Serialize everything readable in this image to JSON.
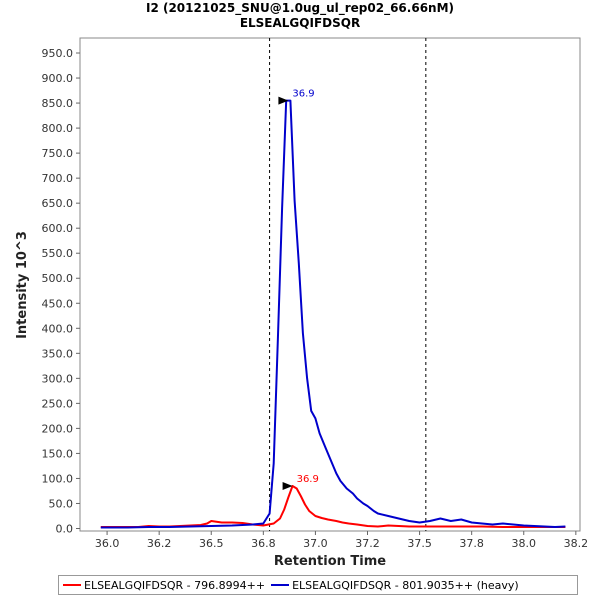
{
  "chart_data": {
    "type": "line",
    "title": "I2 (20121025_SNU@1.0ug_ul_rep02_66.66nM)",
    "subtitle": "ELSEALGQIFDSQR",
    "xlabel": "Retention Time",
    "ylabel": "Intensity 10^3",
    "xlim": [
      35.87,
      38.27
    ],
    "ylim": [
      -5,
      980
    ],
    "x_ticks": [
      "36.0",
      "36.2",
      "36.5",
      "36.8",
      "37.0",
      "37.2",
      "37.5",
      "37.8",
      "38.0",
      "38.2"
    ],
    "x_tick_values": [
      36.0,
      36.25,
      36.5,
      36.75,
      37.0,
      37.25,
      37.5,
      37.75,
      38.0,
      38.25
    ],
    "y_ticks": [
      "0.0",
      "50.0",
      "100.0",
      "150.0",
      "200.0",
      "250.0",
      "300.0",
      "350.0",
      "400.0",
      "450.0",
      "500.0",
      "550.0",
      "600.0",
      "650.0",
      "700.0",
      "750.0",
      "800.0",
      "850.0",
      "900.0",
      "950.0"
    ],
    "y_tick_values": [
      0,
      50,
      100,
      150,
      200,
      250,
      300,
      350,
      400,
      450,
      500,
      550,
      600,
      650,
      700,
      750,
      800,
      850,
      900,
      950
    ],
    "vlines": [
      36.78,
      37.53
    ],
    "legend_position": "bottom",
    "grid": false,
    "series": [
      {
        "name": "ELSEALGQIFDSQR - 796.8994++",
        "color": "#ff0000",
        "peak_label": "36.9",
        "peak": [
          36.9,
          85
        ],
        "x": [
          35.97,
          36.05,
          36.15,
          36.2,
          36.25,
          36.3,
          36.35,
          36.4,
          36.45,
          36.48,
          36.5,
          36.55,
          36.6,
          36.65,
          36.7,
          36.75,
          36.8,
          36.83,
          36.85,
          36.87,
          36.89,
          36.91,
          36.93,
          36.95,
          36.97,
          37.0,
          37.03,
          37.06,
          37.1,
          37.13,
          37.16,
          37.2,
          37.25,
          37.3,
          37.35,
          37.4,
          37.45,
          37.5,
          37.6,
          37.7,
          37.8,
          37.9,
          38.0,
          38.1,
          38.2
        ],
        "y": [
          3,
          3,
          3,
          5,
          4,
          4,
          5,
          6,
          7,
          10,
          15,
          12,
          12,
          11,
          8,
          6,
          10,
          20,
          38,
          62,
          85,
          80,
          65,
          48,
          35,
          25,
          21,
          18,
          15,
          12,
          10,
          8,
          5,
          4,
          6,
          5,
          4,
          4,
          4,
          4,
          4,
          3,
          3,
          3,
          3
        ]
      },
      {
        "name": "ELSEALGQIFDSQR - 801.9035++ (heavy)",
        "color": "#0000cc",
        "peak_label": "36.9",
        "peak": [
          36.88,
          855
        ],
        "x": [
          35.97,
          36.1,
          36.2,
          36.3,
          36.4,
          36.5,
          36.6,
          36.7,
          36.75,
          36.78,
          36.8,
          36.82,
          36.84,
          36.86,
          36.88,
          36.9,
          36.92,
          36.94,
          36.96,
          36.98,
          37.0,
          37.02,
          37.05,
          37.08,
          37.1,
          37.12,
          37.15,
          37.18,
          37.2,
          37.23,
          37.25,
          37.28,
          37.3,
          37.35,
          37.4,
          37.45,
          37.5,
          37.55,
          37.6,
          37.65,
          37.7,
          37.75,
          37.8,
          37.85,
          37.9,
          37.95,
          38.0,
          38.05,
          38.1,
          38.15,
          38.2
        ],
        "y": [
          2,
          2,
          3,
          3,
          4,
          5,
          6,
          8,
          10,
          30,
          130,
          380,
          640,
          855,
          855,
          655,
          530,
          390,
          300,
          235,
          220,
          190,
          160,
          130,
          110,
          95,
          80,
          70,
          60,
          50,
          45,
          35,
          30,
          25,
          20,
          15,
          12,
          15,
          20,
          15,
          18,
          12,
          10,
          8,
          10,
          8,
          6,
          5,
          4,
          3,
          4
        ]
      }
    ]
  }
}
